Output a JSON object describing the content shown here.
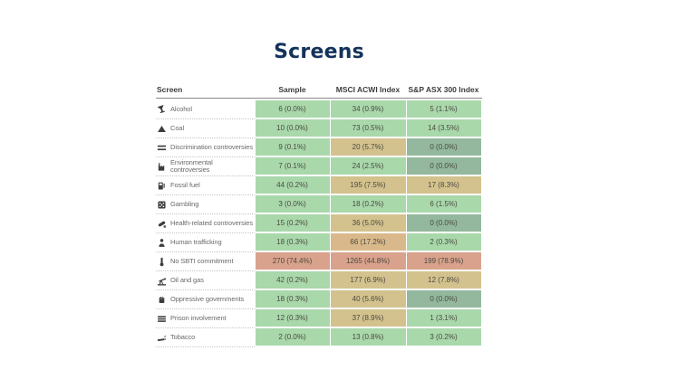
{
  "chart_data": {
    "type": "table",
    "title": "Screens",
    "columns": [
      "Screen",
      "Sample",
      "MSCI ACWI Index",
      "S&P ASX 300 Index"
    ],
    "rows": [
      {
        "icon": "cocktail-glass-icon",
        "label": "Alcohol",
        "cells": [
          {
            "text": "6 (0.0%)",
            "color": "green"
          },
          {
            "text": "34 (0.9%)",
            "color": "green"
          },
          {
            "text": "5 (1.1%)",
            "color": "green"
          }
        ]
      },
      {
        "icon": "coal-mound-icon",
        "label": "Coal",
        "cells": [
          {
            "text": "10 (0.0%)",
            "color": "green"
          },
          {
            "text": "73 (0.5%)",
            "color": "green"
          },
          {
            "text": "14 (3.5%)",
            "color": "green"
          }
        ]
      },
      {
        "icon": "unequal-scales-icon",
        "label": "Discrimination controversies",
        "cells": [
          {
            "text": "9 (0.1%)",
            "color": "green"
          },
          {
            "text": "20 (5.7%)",
            "color": "tan"
          },
          {
            "text": "0 (0.0%)",
            "color": "gray_green"
          }
        ]
      },
      {
        "icon": "factory-icon",
        "label": "Environmental controversies",
        "cells": [
          {
            "text": "7 (0.1%)",
            "color": "green"
          },
          {
            "text": "24 (2.5%)",
            "color": "green"
          },
          {
            "text": "0 (0.0%)",
            "color": "gray_green"
          }
        ]
      },
      {
        "icon": "fuel-pump-icon",
        "label": "Fossil fuel",
        "cells": [
          {
            "text": "44 (0.2%)",
            "color": "green"
          },
          {
            "text": "195 (7.5%)",
            "color": "tan"
          },
          {
            "text": "17 (8.3%)",
            "color": "tan"
          }
        ]
      },
      {
        "icon": "dice-icon",
        "label": "Gambling",
        "cells": [
          {
            "text": "3 (0.0%)",
            "color": "green"
          },
          {
            "text": "18 (0.2%)",
            "color": "green"
          },
          {
            "text": "6 (1.5%)",
            "color": "green"
          }
        ]
      },
      {
        "icon": "pills-icon",
        "label": "Health-related controversies",
        "cells": [
          {
            "text": "15 (0.2%)",
            "color": "green"
          },
          {
            "text": "36 (5.0%)",
            "color": "tan"
          },
          {
            "text": "0 (0.0%)",
            "color": "gray_green"
          }
        ]
      },
      {
        "icon": "person-icon",
        "label": "Human trafficking",
        "cells": [
          {
            "text": "18 (0.3%)",
            "color": "green"
          },
          {
            "text": "66 (17.2%)",
            "color": "orange_tan"
          },
          {
            "text": "2 (0.3%)",
            "color": "green"
          }
        ]
      },
      {
        "icon": "thermometer-icon",
        "label": "No SBTI commitment",
        "cells": [
          {
            "text": "270 (74.4%)",
            "color": "salmon"
          },
          {
            "text": "1265 (44.8%)",
            "color": "salmon"
          },
          {
            "text": "199 (78.9%)",
            "color": "salmon"
          }
        ]
      },
      {
        "icon": "oil-pump-icon",
        "label": "Oil and gas",
        "cells": [
          {
            "text": "42 (0.2%)",
            "color": "green"
          },
          {
            "text": "177 (6.9%)",
            "color": "tan"
          },
          {
            "text": "12 (7.8%)",
            "color": "tan"
          }
        ]
      },
      {
        "icon": "raised-fist-icon",
        "label": "Oppressive governments",
        "cells": [
          {
            "text": "18 (0.3%)",
            "color": "green"
          },
          {
            "text": "40 (5.6%)",
            "color": "tan"
          },
          {
            "text": "0 (0.0%)",
            "color": "gray_green"
          }
        ]
      },
      {
        "icon": "prison-bars-icon",
        "label": "Prison involvement",
        "cells": [
          {
            "text": "12 (0.3%)",
            "color": "green"
          },
          {
            "text": "37 (8.9%)",
            "color": "tan"
          },
          {
            "text": "1 (3.1%)",
            "color": "green"
          }
        ]
      },
      {
        "icon": "cigarette-icon",
        "label": "Tobacco",
        "cells": [
          {
            "text": "2 (0.0%)",
            "color": "green"
          },
          {
            "text": "13 (0.8%)",
            "color": "green"
          },
          {
            "text": "3 (0.2%)",
            "color": "green"
          }
        ]
      }
    ],
    "palette": {
      "green": "#a9d8ab",
      "tan": "#d3c28e",
      "orange_tan": "#d9b98b",
      "salmon": "#d9a28c",
      "gray_green": "#93b89d"
    },
    "title_color": "#14335b",
    "layout": {
      "grid": "off",
      "legend": "none",
      "cell_shading": "value heatmap: green=low %, tan=mid %, salmon=high %, gray-green=zero holdings"
    }
  }
}
